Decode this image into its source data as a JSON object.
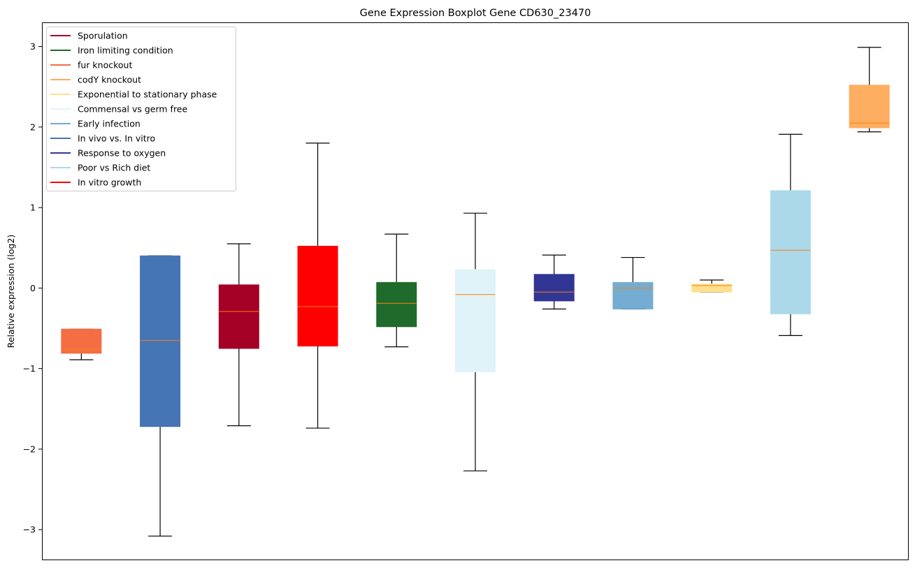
{
  "chart_data": {
    "type": "boxplot",
    "title": "Gene Expression Boxplot Gene CD630_23470",
    "xlabel": "",
    "ylabel": "Relative expression (log2)",
    "ylim": [
      -3.38,
      3.3
    ],
    "xlim": [
      0.5,
      11.5
    ],
    "yticks": [
      -3,
      -2,
      -1,
      0,
      1,
      2,
      3
    ],
    "ytick_labels": [
      "−3",
      "−2",
      "−1",
      "0",
      "1",
      "2",
      "3"
    ],
    "grid": false,
    "legend_position": "top-left",
    "median_color": "#ff7f0e",
    "legend": [
      {
        "label": "Sporulation",
        "color": "#a50026"
      },
      {
        "label": "Iron limiting condition",
        "color": "#1f6b2b"
      },
      {
        "label": "fur knockout",
        "color": "#f46d43"
      },
      {
        "label": "codY knockout",
        "color": "#fdae61"
      },
      {
        "label": "Exponential to stationary phase",
        "color": "#fee090"
      },
      {
        "label": "Commensal vs germ free",
        "color": "#e0f3f8"
      },
      {
        "label": "Early infection",
        "color": "#74add1"
      },
      {
        "label": "In vivo vs. In vitro",
        "color": "#4575b4"
      },
      {
        "label": "Response to oxygen",
        "color": "#313695"
      },
      {
        "label": "Poor vs Rich diet",
        "color": "#abd9e9"
      },
      {
        "label": "In vitro growth",
        "color": "#ff0000"
      }
    ],
    "boxes": [
      {
        "group": "fur knockout",
        "color": "#f46d43",
        "whislo": -0.89,
        "q1": -0.81,
        "med": -0.76,
        "q3": -0.51,
        "whishi": -0.51
      },
      {
        "group": "In vivo vs. In vitro",
        "color": "#4575b4",
        "whislo": -3.08,
        "q1": -1.72,
        "med": -0.65,
        "q3": 0.4,
        "whishi": 0.4
      },
      {
        "group": "Sporulation",
        "color": "#a50026",
        "whislo": -1.71,
        "q1": -0.75,
        "med": -0.29,
        "q3": 0.04,
        "whishi": 0.55
      },
      {
        "group": "In vitro growth",
        "color": "#ff0000",
        "whislo": -1.74,
        "q1": -0.72,
        "med": -0.23,
        "q3": 0.52,
        "whishi": 1.8
      },
      {
        "group": "Iron limiting condition",
        "color": "#1f6b2b",
        "whislo": -0.73,
        "q1": -0.48,
        "med": -0.19,
        "q3": 0.07,
        "whishi": 0.67
      },
      {
        "group": "Commensal vs germ free",
        "color": "#e0f3f8",
        "whislo": -2.27,
        "q1": -1.04,
        "med": -0.08,
        "q3": 0.23,
        "whishi": 0.93
      },
      {
        "group": "Response to oxygen",
        "color": "#313695",
        "whislo": -0.26,
        "q1": -0.16,
        "med": -0.05,
        "q3": 0.17,
        "whishi": 0.41
      },
      {
        "group": "Early infection",
        "color": "#74add1",
        "whislo": -0.26,
        "q1": -0.26,
        "med": 0.0,
        "q3": 0.07,
        "whishi": 0.38
      },
      {
        "group": "Exponential to stationary phase",
        "color": "#fee090",
        "whislo": -0.05,
        "q1": -0.05,
        "med": 0.03,
        "q3": 0.05,
        "whishi": 0.1
      },
      {
        "group": "Poor vs Rich diet",
        "color": "#abd9e9",
        "whislo": -0.59,
        "q1": -0.32,
        "med": 0.47,
        "q3": 1.21,
        "whishi": 1.91
      },
      {
        "group": "codY knockout",
        "color": "#fdae61",
        "whislo": 1.94,
        "q1": 1.99,
        "med": 2.05,
        "q3": 2.52,
        "whishi": 2.99
      }
    ]
  }
}
